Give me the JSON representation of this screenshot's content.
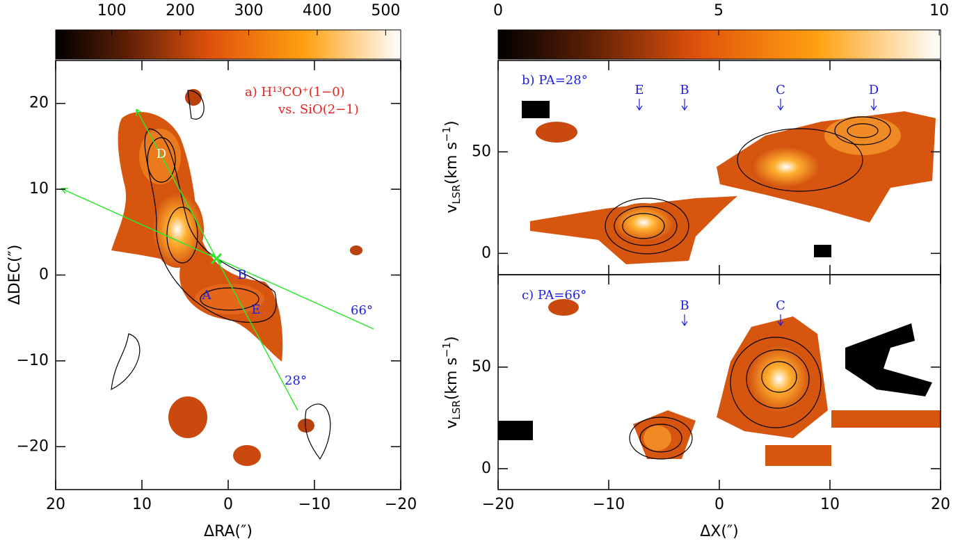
{
  "chart_data": [
    {
      "type": "heatmap",
      "xlabel": "ΔRA(″)",
      "ylabel": "ΔDEC(″)",
      "xlim": [
        20,
        -20
      ],
      "ylim": [
        -25,
        25
      ],
      "xticks": [
        20,
        10,
        0,
        {
          "value": -10,
          "label": "−10"
        },
        {
          "value": -20,
          "label": "−20"
        }
      ],
      "yticks": [
        20,
        10,
        0,
        {
          "value": -10,
          "label": "−10"
        },
        {
          "value": -20,
          "label": "−20"
        }
      ],
      "colorbar": {
        "clim": [
          18,
          522
        ],
        "ticks": [
          100,
          200,
          300,
          400,
          500
        ]
      },
      "annotations": [
        "a) H¹³CO⁺(1−0)",
        "vs. SiO(2−1)",
        "D",
        "A",
        "B",
        "E",
        "66°",
        "28°"
      ]
    },
    {
      "type": "heatmap",
      "ylabel_parts": [
        "v",
        "LSR",
        "(km s",
        "−1",
        ")"
      ],
      "xlim": [
        -20,
        20
      ],
      "ylim": [
        -10.5,
        95
      ],
      "xticks": [
        -20,
        -10,
        0,
        10,
        20
      ],
      "yticks": [
        0,
        50
      ],
      "colorbar": {
        "clim": [
          0,
          10.03
        ],
        "ticks": [
          0,
          5,
          10
        ]
      },
      "annotations": [
        "b) PA=28°",
        "E",
        "B",
        "C",
        "D"
      ]
    },
    {
      "type": "heatmap",
      "xlabel": "ΔX(″)",
      "ylabel_parts": [
        "v",
        "LSR",
        "(km s",
        "−1",
        ")"
      ],
      "xlim": [
        -20,
        20
      ],
      "ylim": [
        -10.3,
        95.5
      ],
      "xticks": [
        {
          "value": -20,
          "label": "−20"
        },
        {
          "value": -10,
          "label": "−10"
        },
        0,
        10,
        20
      ],
      "yticks": [
        0,
        50
      ],
      "annotations": [
        "c) PA=66°",
        "B",
        "C"
      ]
    }
  ]
}
